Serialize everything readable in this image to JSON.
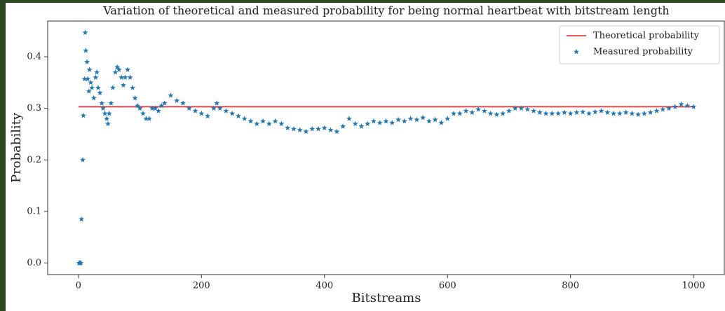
{
  "chart_data": {
    "type": "scatter",
    "title": "Variation of theoretical and measured probability for being normal heartbeat with bitstream length",
    "x_label": "Bitstreams",
    "y_label": "Probability",
    "xlim": [
      -50,
      1050
    ],
    "ylim": [
      -0.0224,
      0.4694
    ],
    "xticks": [
      0,
      200,
      400,
      600,
      800,
      1000
    ],
    "yticks": [
      {
        "value": 0,
        "label": "0.0"
      },
      0.1,
      0.2,
      0.3,
      0.4
    ],
    "grid": false,
    "legend": "upper right",
    "series": [
      {
        "name": "Theoretical probability",
        "color": "#d62728",
        "kind": "line",
        "x": [
          0,
          1000
        ],
        "values": [
          0.303,
          0.303
        ]
      },
      {
        "name": "Measured probability",
        "color": "#1f77b4",
        "kind": "marker",
        "x": [
          1,
          2,
          3,
          4,
          5,
          7,
          8,
          10,
          11,
          12,
          14,
          15,
          17,
          18,
          20,
          22,
          25,
          28,
          30,
          32,
          35,
          38,
          40,
          43,
          46,
          48,
          50,
          53,
          56,
          60,
          63,
          66,
          70,
          73,
          76,
          80,
          84,
          88,
          92,
          96,
          100,
          105,
          110,
          115,
          120,
          125,
          130,
          135,
          140,
          150,
          160,
          170,
          180,
          190,
          200,
          210,
          220,
          225,
          230,
          240,
          250,
          260,
          270,
          280,
          290,
          300,
          310,
          320,
          330,
          340,
          350,
          360,
          370,
          380,
          390,
          400,
          410,
          420,
          430,
          440,
          450,
          460,
          470,
          480,
          490,
          500,
          510,
          520,
          530,
          540,
          550,
          560,
          570,
          580,
          590,
          600,
          610,
          620,
          630,
          640,
          650,
          660,
          670,
          680,
          690,
          700,
          710,
          720,
          730,
          740,
          750,
          760,
          770,
          780,
          790,
          800,
          810,
          820,
          830,
          840,
          850,
          860,
          870,
          880,
          890,
          900,
          910,
          920,
          930,
          940,
          950,
          960,
          970,
          980,
          990,
          1000
        ],
        "values": [
          0,
          0,
          0,
          0,
          0.085,
          0.2,
          0.286,
          0.357,
          0.447,
          0.412,
          0.39,
          0.357,
          0.333,
          0.375,
          0.35,
          0.34,
          0.32,
          0.36,
          0.37,
          0.34,
          0.33,
          0.31,
          0.3,
          0.29,
          0.28,
          0.27,
          0.29,
          0.31,
          0.34,
          0.37,
          0.38,
          0.375,
          0.36,
          0.345,
          0.36,
          0.375,
          0.36,
          0.34,
          0.32,
          0.305,
          0.3,
          0.29,
          0.28,
          0.28,
          0.3,
          0.3,
          0.295,
          0.305,
          0.31,
          0.325,
          0.315,
          0.31,
          0.3,
          0.295,
          0.29,
          0.285,
          0.3,
          0.31,
          0.3,
          0.295,
          0.29,
          0.285,
          0.28,
          0.275,
          0.27,
          0.275,
          0.27,
          0.275,
          0.27,
          0.262,
          0.26,
          0.258,
          0.255,
          0.26,
          0.26,
          0.262,
          0.258,
          0.255,
          0.265,
          0.28,
          0.27,
          0.265,
          0.27,
          0.275,
          0.272,
          0.275,
          0.272,
          0.278,
          0.275,
          0.28,
          0.278,
          0.282,
          0.275,
          0.278,
          0.272,
          0.28,
          0.29,
          0.29,
          0.295,
          0.292,
          0.298,
          0.295,
          0.29,
          0.288,
          0.29,
          0.295,
          0.3,
          0.3,
          0.298,
          0.295,
          0.292,
          0.29,
          0.29,
          0.29,
          0.292,
          0.29,
          0.292,
          0.293,
          0.29,
          0.293,
          0.295,
          0.292,
          0.29,
          0.29,
          0.292,
          0.29,
          0.288,
          0.29,
          0.292,
          0.295,
          0.298,
          0.3,
          0.303,
          0.308,
          0.305,
          0.303
        ]
      }
    ]
  }
}
